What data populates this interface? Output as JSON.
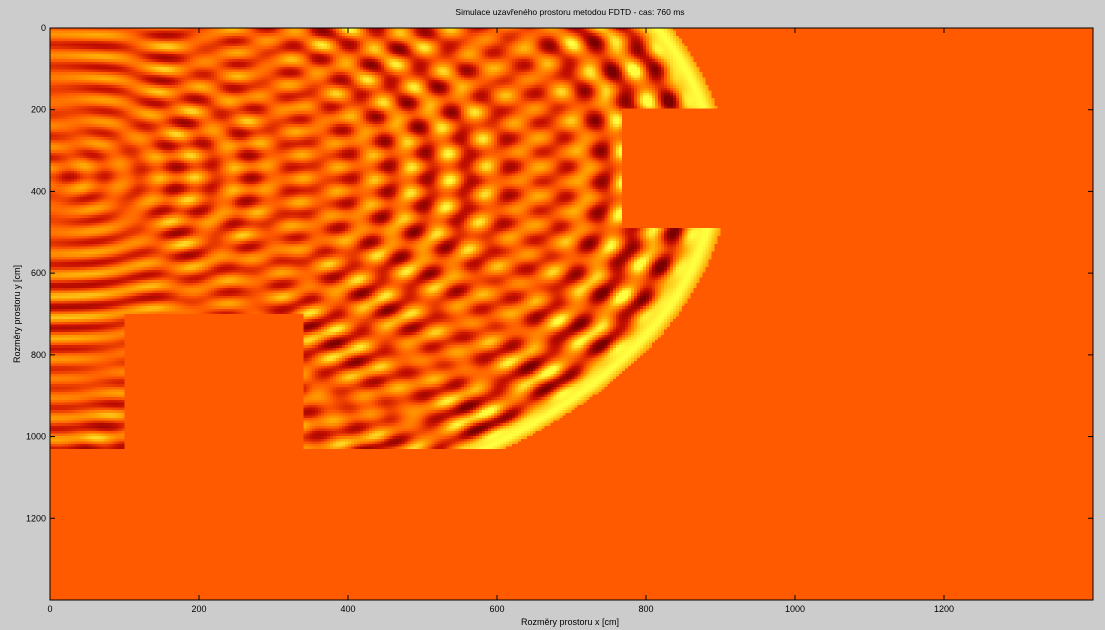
{
  "chart_data": {
    "type": "heatmap",
    "title": "Simulace uzavřeného prostoru metodou FDTD - cas: 760 ms",
    "xlabel": "Rozměry prostoru x [cm]",
    "ylabel": "Rozměry prostoru y [cm]",
    "xlim": [
      0,
      1400
    ],
    "ylim": [
      0,
      1400
    ],
    "y_reversed": true,
    "x_ticks": [
      0,
      200,
      400,
      600,
      800,
      1000,
      1200
    ],
    "y_ticks": [
      0,
      200,
      400,
      600,
      800,
      1000,
      1200
    ],
    "background_value_color": "#ff5a00",
    "colormap": [
      "#7a0000",
      "#c81000",
      "#ff5a00",
      "#ffa000",
      "#ffff40"
    ],
    "source_point": {
      "x": 10,
      "y": 360
    },
    "wave_time_ms": 760,
    "obstacles": [
      {
        "x0": 100,
        "x1": 340,
        "y0": 700,
        "y1": 1030
      },
      {
        "x0": 770,
        "x1": 920,
        "y0": 200,
        "y1": 490
      }
    ],
    "wave_region": {
      "x_max": 920,
      "y_max": 1030
    }
  }
}
